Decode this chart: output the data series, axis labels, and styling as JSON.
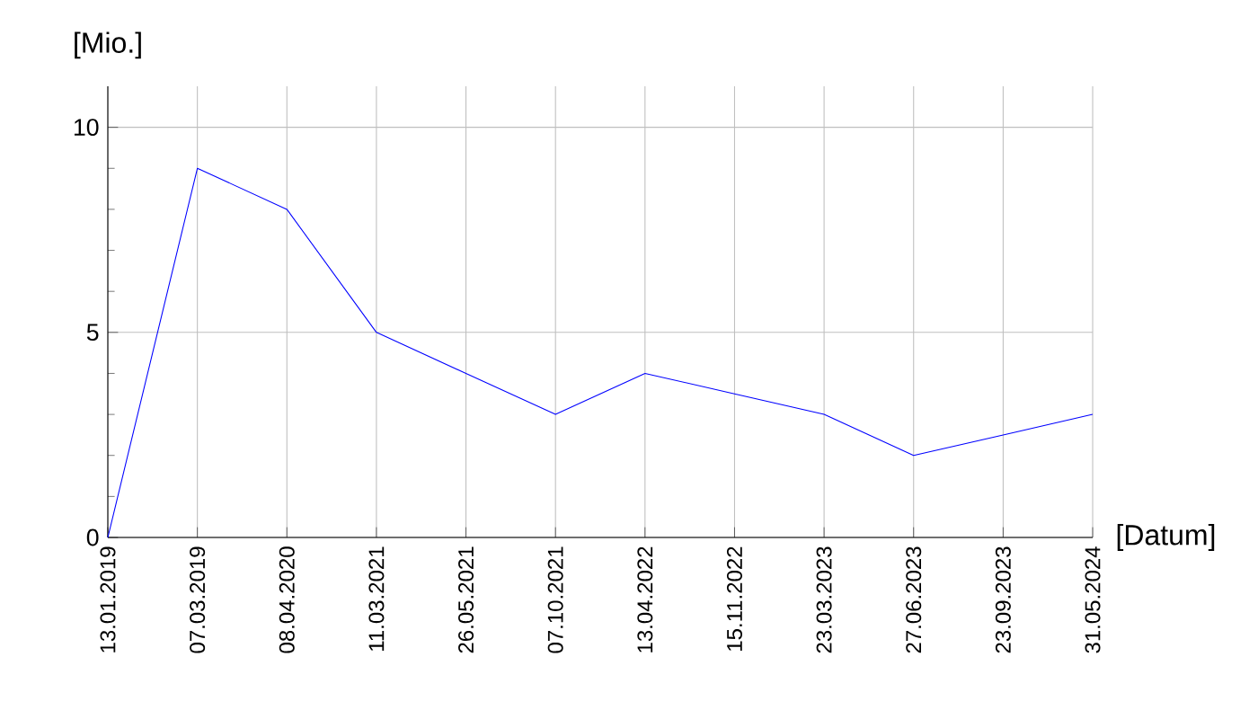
{
  "chart_data": {
    "type": "line",
    "xlabel": "[Datum]",
    "ylabel": "[Mio.]",
    "categories": [
      "13.01.2019",
      "07.03.2019",
      "08.04.2020",
      "11.03.2021",
      "26.05.2021",
      "07.10.2021",
      "13.04.2022",
      "15.11.2022",
      "23.03.2023",
      "27.06.2023",
      "23.09.2023",
      "31.05.2024"
    ],
    "series": [
      {
        "color": "#0000ff",
        "values": [
          0,
          9,
          8,
          5,
          4,
          3,
          4,
          3.5,
          3,
          2,
          2.5,
          3
        ]
      }
    ],
    "ylim": [
      0,
      11
    ],
    "yticks": [
      0,
      5,
      10
    ],
    "grid": true,
    "marker": "none",
    "line_style": "solid"
  }
}
